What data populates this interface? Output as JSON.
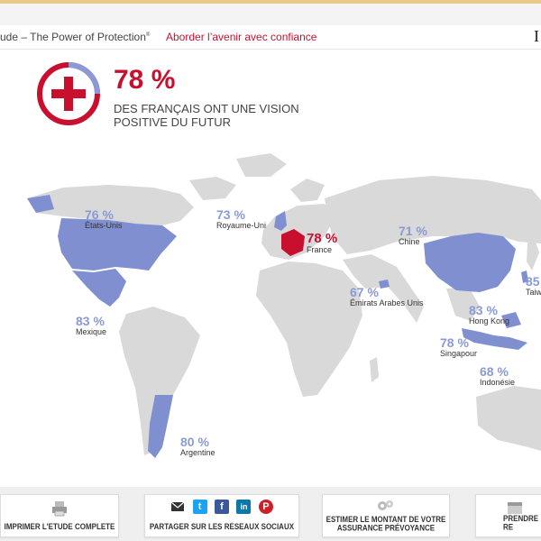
{
  "header": {
    "title": "ude – The Power of Protection",
    "title_mark": "®",
    "subtitle": "Aborder l’avenir avec confiance",
    "edge_letter": "I"
  },
  "headline": {
    "value": "78 %",
    "text": "DES FRANÇAIS ONT UNE VISION POSITIVE DU FUTUR"
  },
  "map_labels": [
    {
      "id": "etats-unis",
      "pct": "76 %",
      "name": "États-Unis"
    },
    {
      "id": "mexique",
      "pct": "83 %",
      "name": "Mexique"
    },
    {
      "id": "royaume-uni",
      "pct": "73 %",
      "name": "Royaume-Uni"
    },
    {
      "id": "france",
      "pct": "78 %",
      "name": "France"
    },
    {
      "id": "chine",
      "pct": "71 %",
      "name": "Chine"
    },
    {
      "id": "emirats",
      "pct": "67 %",
      "name": "Émirats Arabes Unis"
    },
    {
      "id": "hong-kong",
      "pct": "83 %",
      "name": "Hong Kong"
    },
    {
      "id": "taiwan",
      "pct": "85",
      "name": "Taiw"
    },
    {
      "id": "singapour",
      "pct": "78 %",
      "name": "Singapour"
    },
    {
      "id": "indonesie",
      "pct": "68 %",
      "name": "Indonésie"
    },
    {
      "id": "argentine",
      "pct": "80 %",
      "name": "Argentine"
    }
  ],
  "colors": {
    "accent": "#c8102e",
    "highlight_country": "#7f8fd0",
    "land": "#d9d9d9"
  },
  "footer": {
    "print_label": "IMPRIMER L'ETUDE COMPLETE",
    "share_label": "PARTAGER SUR LES RÉSEAUX SOCIAUX",
    "estimate_label_1": "ESTIMER LE MONTANT DE VOTRE",
    "estimate_label_2": "ASSURANCE PRÉVOYANCE",
    "rdv_label": "PRENDRE RE",
    "social_icons": [
      "mail-icon",
      "twitter-icon",
      "facebook-icon",
      "linkedin-icon",
      "pinterest-icon"
    ]
  }
}
